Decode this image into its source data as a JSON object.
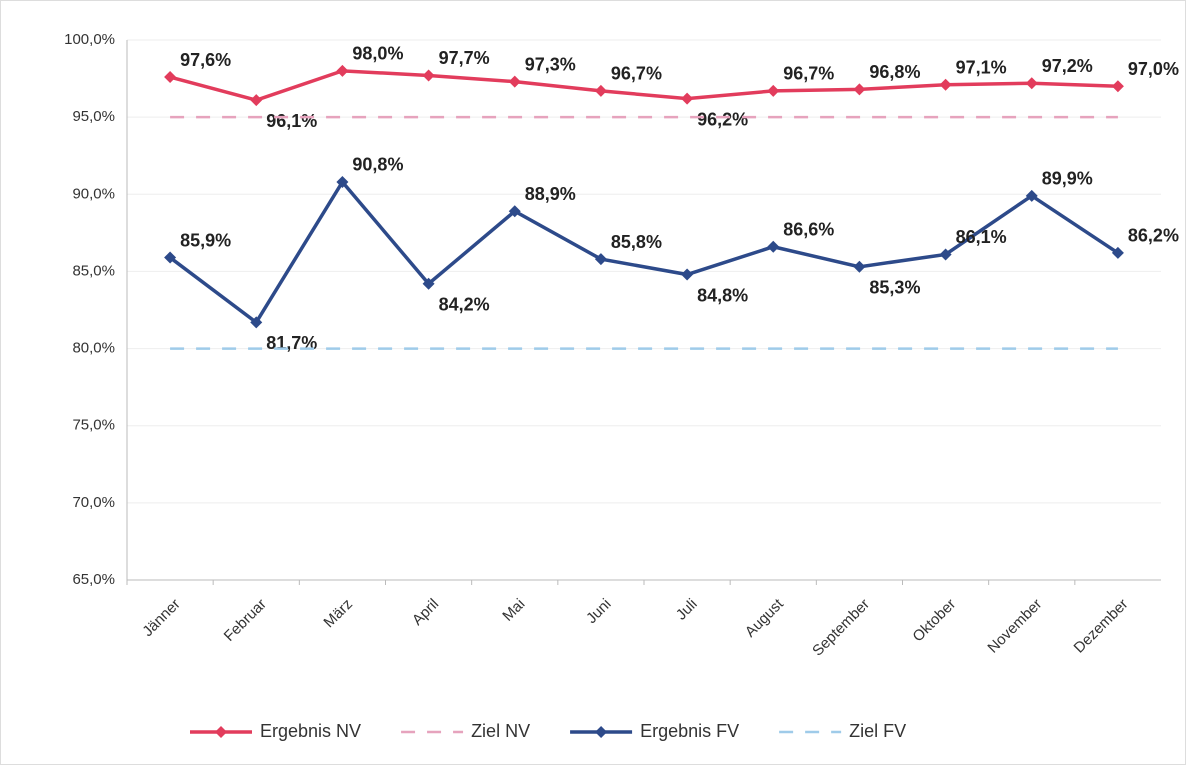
{
  "chart_data": {
    "type": "line",
    "categories": [
      "Jänner",
      "Februar",
      "März",
      "April",
      "Mai",
      "Juni",
      "Juli",
      "August",
      "September",
      "Oktober",
      "November",
      "Dezember"
    ],
    "series": [
      {
        "name": "Ergebnis NV",
        "color": "#e23c5c",
        "dashed": false,
        "marker": true,
        "values": [
          97.6,
          96.1,
          98.0,
          97.7,
          97.3,
          96.7,
          96.2,
          96.7,
          96.8,
          97.1,
          97.2,
          97.0
        ],
        "value_labels": [
          "97,6%",
          "96,1%",
          "98,0%",
          "97,7%",
          "97,3%",
          "96,7%",
          "96,2%",
          "96,7%",
          "96,8%",
          "97,1%",
          "97,2%",
          "97,0%"
        ]
      },
      {
        "name": "Ziel NV",
        "color": "#e6a3bd",
        "dashed": true,
        "marker": false,
        "values": [
          95,
          95,
          95,
          95,
          95,
          95,
          95,
          95,
          95,
          95,
          95,
          95
        ]
      },
      {
        "name": "Ergebnis FV",
        "color": "#2d4a8a",
        "dashed": false,
        "marker": true,
        "values": [
          85.9,
          81.7,
          90.8,
          84.2,
          88.9,
          85.8,
          84.8,
          86.6,
          85.3,
          86.1,
          89.9,
          86.2
        ],
        "value_labels": [
          "85,9%",
          "81,7%",
          "90,8%",
          "84,2%",
          "88,9%",
          "85,8%",
          "84,8%",
          "86,6%",
          "85,3%",
          "86,1%",
          "89,9%",
          "86,2%"
        ]
      },
      {
        "name": "Ziel FV",
        "color": "#9fcbe9",
        "dashed": true,
        "marker": false,
        "values": [
          80,
          80,
          80,
          80,
          80,
          80,
          80,
          80,
          80,
          80,
          80,
          80
        ]
      }
    ],
    "ylim": [
      65,
      100
    ],
    "yticks": [
      {
        "value": 65,
        "label": "65,0%"
      },
      {
        "value": 70,
        "label": "70,0%"
      },
      {
        "value": 75,
        "label": "75,0%"
      },
      {
        "value": 80,
        "label": "80,0%"
      },
      {
        "value": 85,
        "label": "85,0%"
      },
      {
        "value": 90,
        "label": "90,0%"
      },
      {
        "value": 95,
        "label": "95,0%"
      },
      {
        "value": 100,
        "label": "100,0%"
      }
    ],
    "grid": true,
    "legend": "bottom"
  }
}
